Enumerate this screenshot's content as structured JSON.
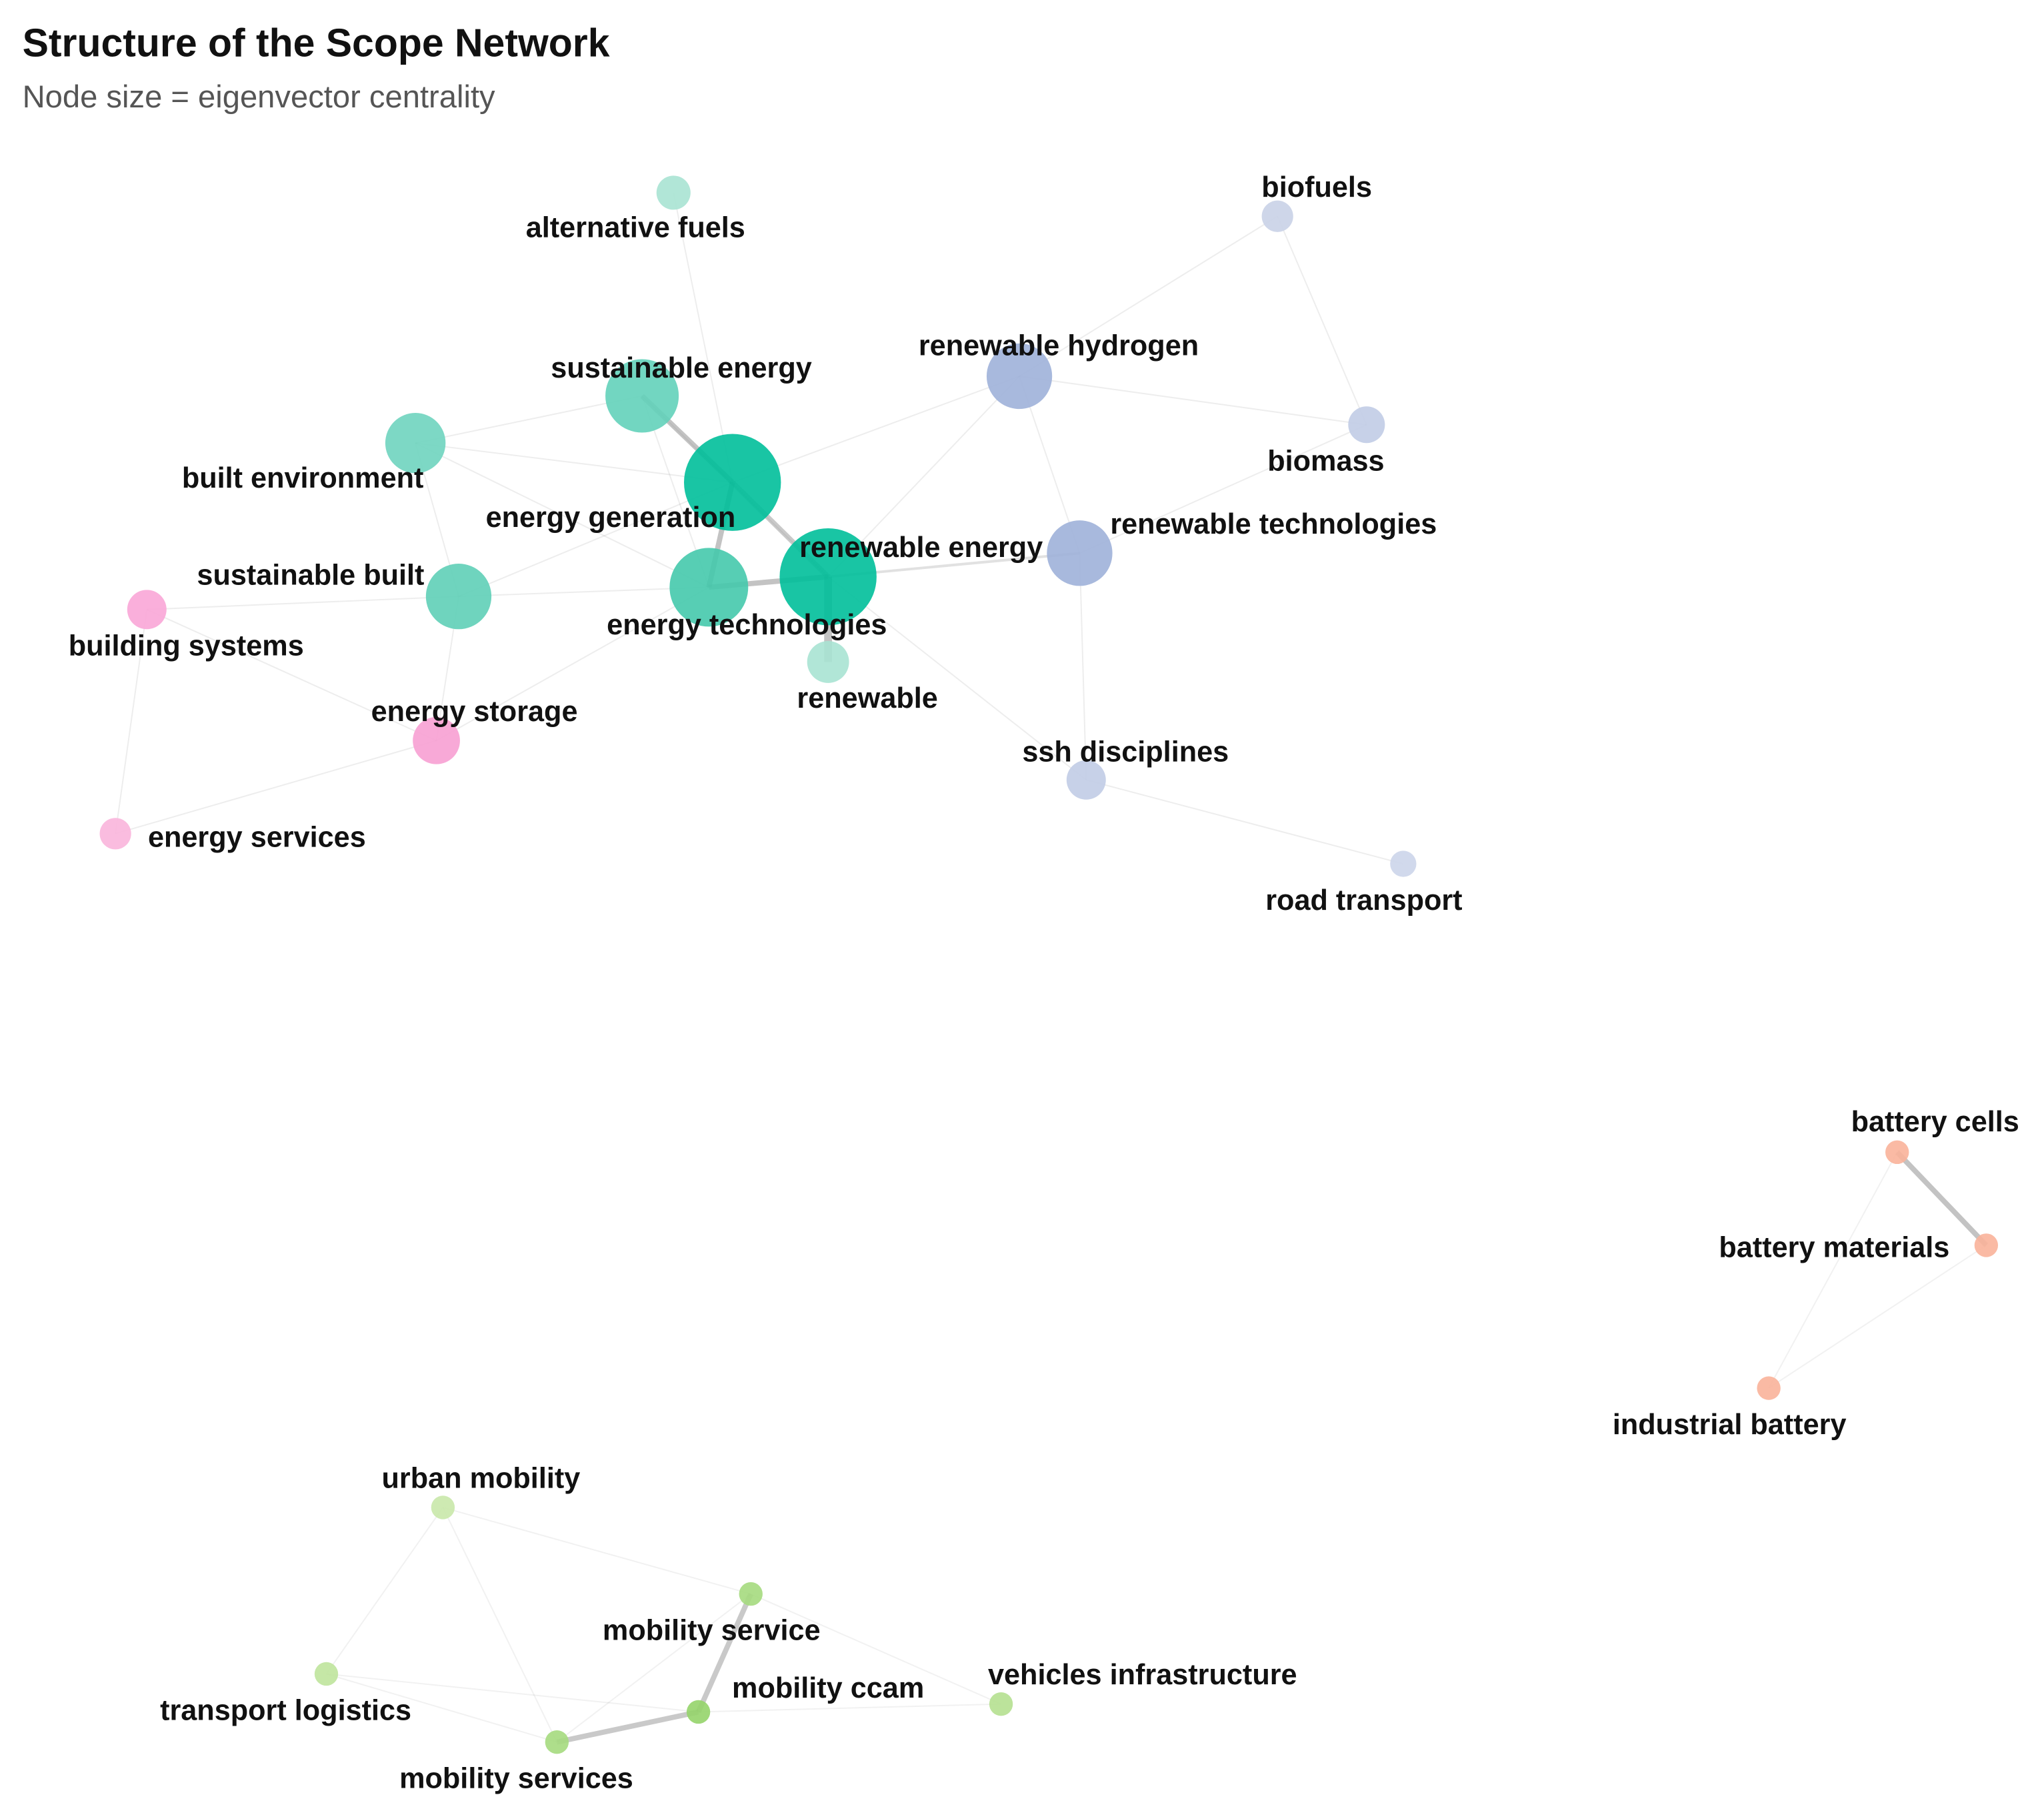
{
  "header": {
    "title": "Structure of the Scope Network",
    "subtitle": "Node size = eigenvector centrality"
  },
  "nodes": [
    {
      "label": "alternative fuels"
    },
    {
      "label": "biofuels"
    },
    {
      "label": "sustainable energy"
    },
    {
      "label": "renewable hydrogen"
    },
    {
      "label": "biomass"
    },
    {
      "label": "built environment"
    },
    {
      "label": "energy generation"
    },
    {
      "label": "renewable energy"
    },
    {
      "label": "renewable technologies"
    },
    {
      "label": "sustainable built"
    },
    {
      "label": "energy technologies"
    },
    {
      "label": "building systems"
    },
    {
      "label": "renewable"
    },
    {
      "label": "energy storage"
    },
    {
      "label": "ssh disciplines"
    },
    {
      "label": "energy services"
    },
    {
      "label": "road transport"
    },
    {
      "label": "battery cells"
    },
    {
      "label": "battery materials"
    },
    {
      "label": "industrial battery"
    },
    {
      "label": "urban mobility"
    },
    {
      "label": "mobility service"
    },
    {
      "label": "transport logistics"
    },
    {
      "label": "mobility ccam"
    },
    {
      "label": "vehicles infrastructure"
    },
    {
      "label": "mobility services"
    }
  ]
}
